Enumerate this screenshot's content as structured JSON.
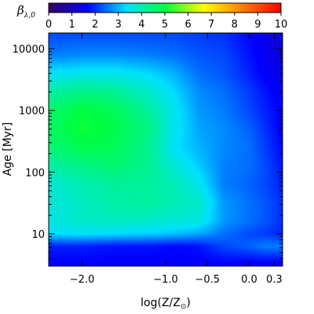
{
  "chart_data": {
    "type": "heatmap",
    "title": "",
    "colorbar": {
      "label": "β",
      "label_subscript": "λ,0",
      "range": [
        0,
        10
      ],
      "ticks": [
        "0",
        "1",
        "2",
        "3",
        "4",
        "5",
        "6",
        "7",
        "8",
        "9",
        "10"
      ],
      "colormap": [
        "#3a0060",
        "#0000ff",
        "#00e0ff",
        "#00ff40",
        "#ffff00",
        "#ff8000",
        "#ff0000"
      ]
    },
    "x_axis": {
      "label": "log(Z/Z",
      "label_subscript": "⊙",
      "label_close": ")",
      "range": [
        -2.4,
        0.4
      ],
      "ticks": [
        {
          "value": -2.0,
          "label": "−2.0"
        },
        {
          "value": -1.0,
          "label": "−1.0"
        },
        {
          "value": -0.5,
          "label": "−0.5"
        },
        {
          "value": 0.0,
          "label": "0.0"
        },
        {
          "value": 0.3,
          "label": "0.3"
        }
      ]
    },
    "y_axis": {
      "label": "Age [Myr]",
      "scale": "log",
      "range": [
        3,
        18000
      ],
      "ticks": [
        {
          "value": 10,
          "label": "10"
        },
        {
          "value": 100,
          "label": "100"
        },
        {
          "value": 1000,
          "label": "1000"
        },
        {
          "value": 10000,
          "label": "10000"
        }
      ]
    },
    "grid": false,
    "z_grid": {
      "log_z": [
        -2.4,
        -2.0,
        -1.6,
        -1.2,
        -0.9,
        -0.6,
        -0.3,
        0.0,
        0.2,
        0.4
      ],
      "log_age": [
        0.5,
        0.8,
        1.0,
        1.2,
        1.5,
        1.8,
        2.1,
        2.4,
        2.7,
        3.0,
        3.3,
        3.6,
        3.9,
        4.25
      ],
      "values": [
        [
          1.6,
          1.6,
          1.6,
          1.6,
          1.6,
          1.6,
          1.6,
          1.5,
          1.5,
          1.5
        ],
        [
          1.9,
          1.9,
          1.8,
          1.8,
          1.7,
          1.8,
          2.2,
          2.4,
          2.6,
          2.6
        ],
        [
          3.3,
          3.4,
          3.3,
          3.2,
          3.1,
          2.9,
          2.5,
          2.2,
          2.1,
          1.9
        ],
        [
          3.6,
          3.8,
          3.9,
          3.8,
          3.7,
          3.6,
          2.8,
          2.5,
          2.3,
          2.0
        ],
        [
          3.6,
          3.9,
          4.1,
          4.2,
          4.0,
          3.8,
          2.8,
          2.5,
          2.3,
          2.0
        ],
        [
          3.7,
          4.0,
          4.2,
          4.2,
          4.0,
          3.5,
          2.6,
          2.4,
          2.2,
          1.9
        ],
        [
          4.1,
          4.4,
          4.6,
          4.3,
          3.7,
          3.2,
          2.6,
          2.5,
          2.2,
          1.8
        ],
        [
          4.5,
          4.9,
          4.8,
          4.3,
          3.4,
          3.0,
          2.7,
          2.5,
          2.1,
          1.7
        ],
        [
          4.7,
          5.1,
          4.9,
          4.4,
          3.5,
          2.9,
          2.7,
          2.4,
          2.0,
          1.6
        ],
        [
          4.6,
          5.0,
          4.8,
          4.2,
          3.5,
          2.8,
          2.6,
          2.2,
          1.9,
          1.6
        ],
        [
          4.1,
          4.4,
          4.3,
          3.8,
          3.3,
          2.7,
          2.5,
          2.1,
          1.8,
          1.5
        ],
        [
          3.4,
          3.5,
          3.5,
          3.3,
          3.0,
          2.5,
          2.3,
          1.9,
          1.6,
          1.4
        ],
        [
          2.6,
          2.7,
          2.7,
          2.6,
          2.5,
          2.3,
          2.2,
          1.8,
          1.5,
          1.3
        ],
        [
          2.2,
          2.2,
          2.2,
          2.2,
          2.2,
          2.1,
          2.0,
          1.7,
          1.4,
          1.2
        ]
      ]
    }
  }
}
